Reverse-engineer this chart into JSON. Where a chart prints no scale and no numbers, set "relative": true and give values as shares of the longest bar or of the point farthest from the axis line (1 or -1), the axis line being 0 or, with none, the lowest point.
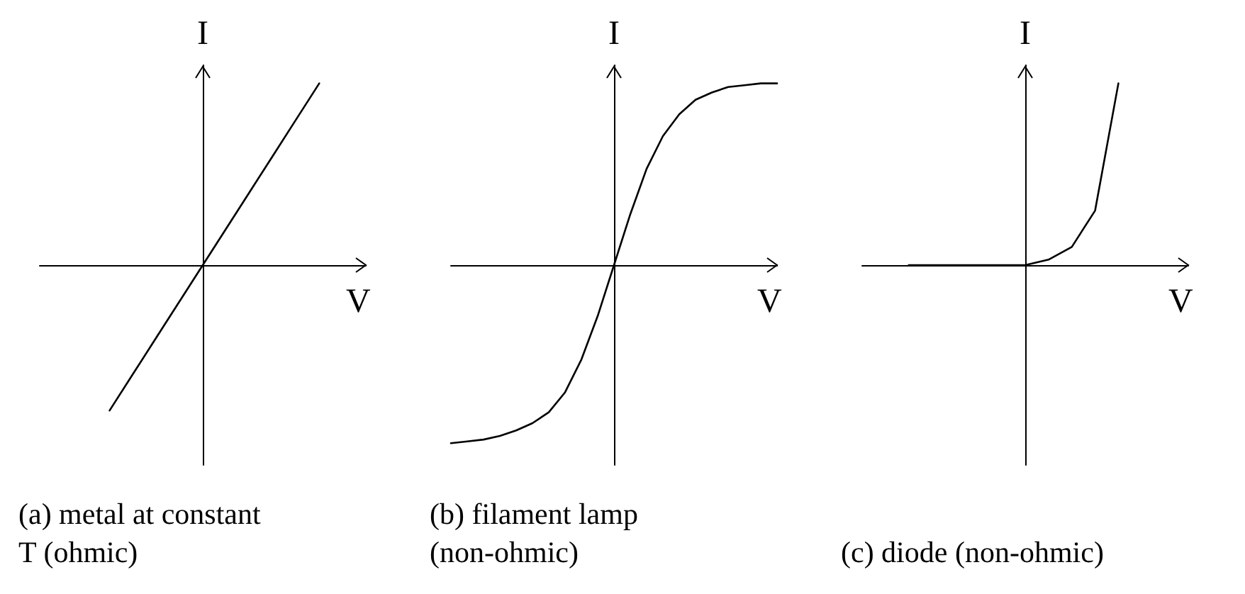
{
  "chart_data": [
    {
      "type": "line",
      "title": "(a) metal at constant T (ohmic)",
      "xlabel": "V",
      "ylabel": "I",
      "relative": true,
      "marker": "none",
      "line_style": "solid",
      "categories": [
        null,
        null,
        null,
        null,
        null,
        null,
        null,
        null,
        null,
        null,
        null,
        null,
        null,
        null,
        null
      ],
      "series": [
        {
          "color": "#000000",
          "values": [
            null,
            null,
            null,
            -0.8,
            -0.6,
            -0.4,
            -0.2,
            0,
            0.2,
            0.4,
            0.6,
            0.8,
            1.0,
            null,
            null
          ]
        }
      ]
    },
    {
      "type": "line",
      "title": "(b) filament lamp (non-ohmic)",
      "xlabel": "V",
      "ylabel": "I",
      "relative": true,
      "marker": "none",
      "line_style": "solid",
      "categories": [
        null,
        null,
        null,
        null,
        null,
        null,
        null,
        null,
        null,
        null,
        null,
        null,
        null,
        null,
        null,
        null,
        null,
        null,
        null,
        null,
        null
      ],
      "series": [
        {
          "color": "#000000",
          "values": [
            -0.98,
            -0.97,
            -0.96,
            -0.94,
            -0.91,
            -0.87,
            -0.81,
            -0.7,
            -0.52,
            -0.28,
            0,
            0.28,
            0.53,
            0.71,
            0.83,
            0.91,
            0.95,
            0.98,
            0.99,
            1.0,
            1.0
          ]
        }
      ]
    },
    {
      "type": "line",
      "title": "(c) diode (non-ohmic)",
      "xlabel": "V",
      "ylabel": "I",
      "relative": true,
      "marker": "none",
      "line_style": "solid",
      "categories": [
        null,
        null,
        null,
        null,
        null,
        null,
        null,
        null,
        null,
        null,
        null,
        null,
        null,
        null,
        null
      ],
      "series": [
        {
          "color": "#000000",
          "values": [
            null,
            null,
            0,
            0,
            0,
            0,
            0,
            0,
            0.03,
            0.1,
            0.3,
            1.0,
            null,
            null,
            null
          ]
        }
      ]
    }
  ]
}
